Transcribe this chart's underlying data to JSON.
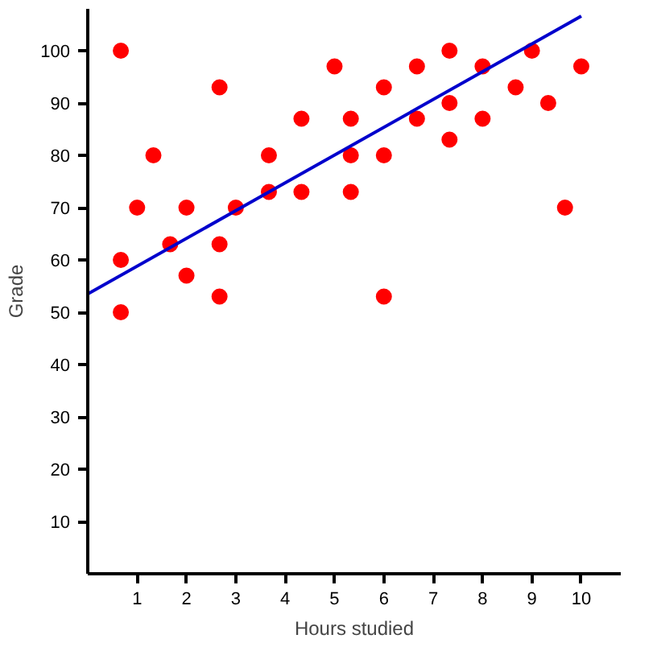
{
  "chart_data": {
    "type": "scatter",
    "xlabel": "Hours studied",
    "ylabel": "Grade",
    "xlim": [
      0,
      10.8
    ],
    "ylim": [
      0,
      108
    ],
    "xticks": [
      1,
      2,
      3,
      4,
      5,
      6,
      7,
      8,
      9,
      10
    ],
    "yticks": [
      10,
      20,
      30,
      40,
      50,
      60,
      70,
      80,
      90,
      100
    ],
    "grid": false,
    "marker": "circle",
    "series": [
      {
        "color": "#ff0000",
        "x": [
          0.67,
          0.67,
          0.67,
          1,
          1.33,
          1.67,
          2,
          2,
          2.67,
          2.67,
          2.67,
          3,
          3.67,
          3.67,
          4.33,
          4.33,
          5,
          5.33,
          5.33,
          5.33,
          6,
          6,
          6,
          6.67,
          6.67,
          7.33,
          7.33,
          7.33,
          8,
          8,
          8.67,
          9,
          9.33,
          9.67,
          10
        ],
        "values": [
          100,
          60,
          50,
          70,
          80,
          63,
          70,
          57,
          93,
          63,
          53,
          70,
          80,
          73,
          87,
          73,
          97,
          87,
          80,
          73,
          93,
          80,
          53,
          97,
          87,
          100,
          90,
          83,
          97,
          87,
          93,
          100,
          90,
          70,
          97
        ]
      },
      {
        "type": "line",
        "color": "#0000cc",
        "x": [
          0,
          10
        ],
        "values": [
          53.5,
          106.6
        ],
        "marker": "none"
      }
    ]
  }
}
